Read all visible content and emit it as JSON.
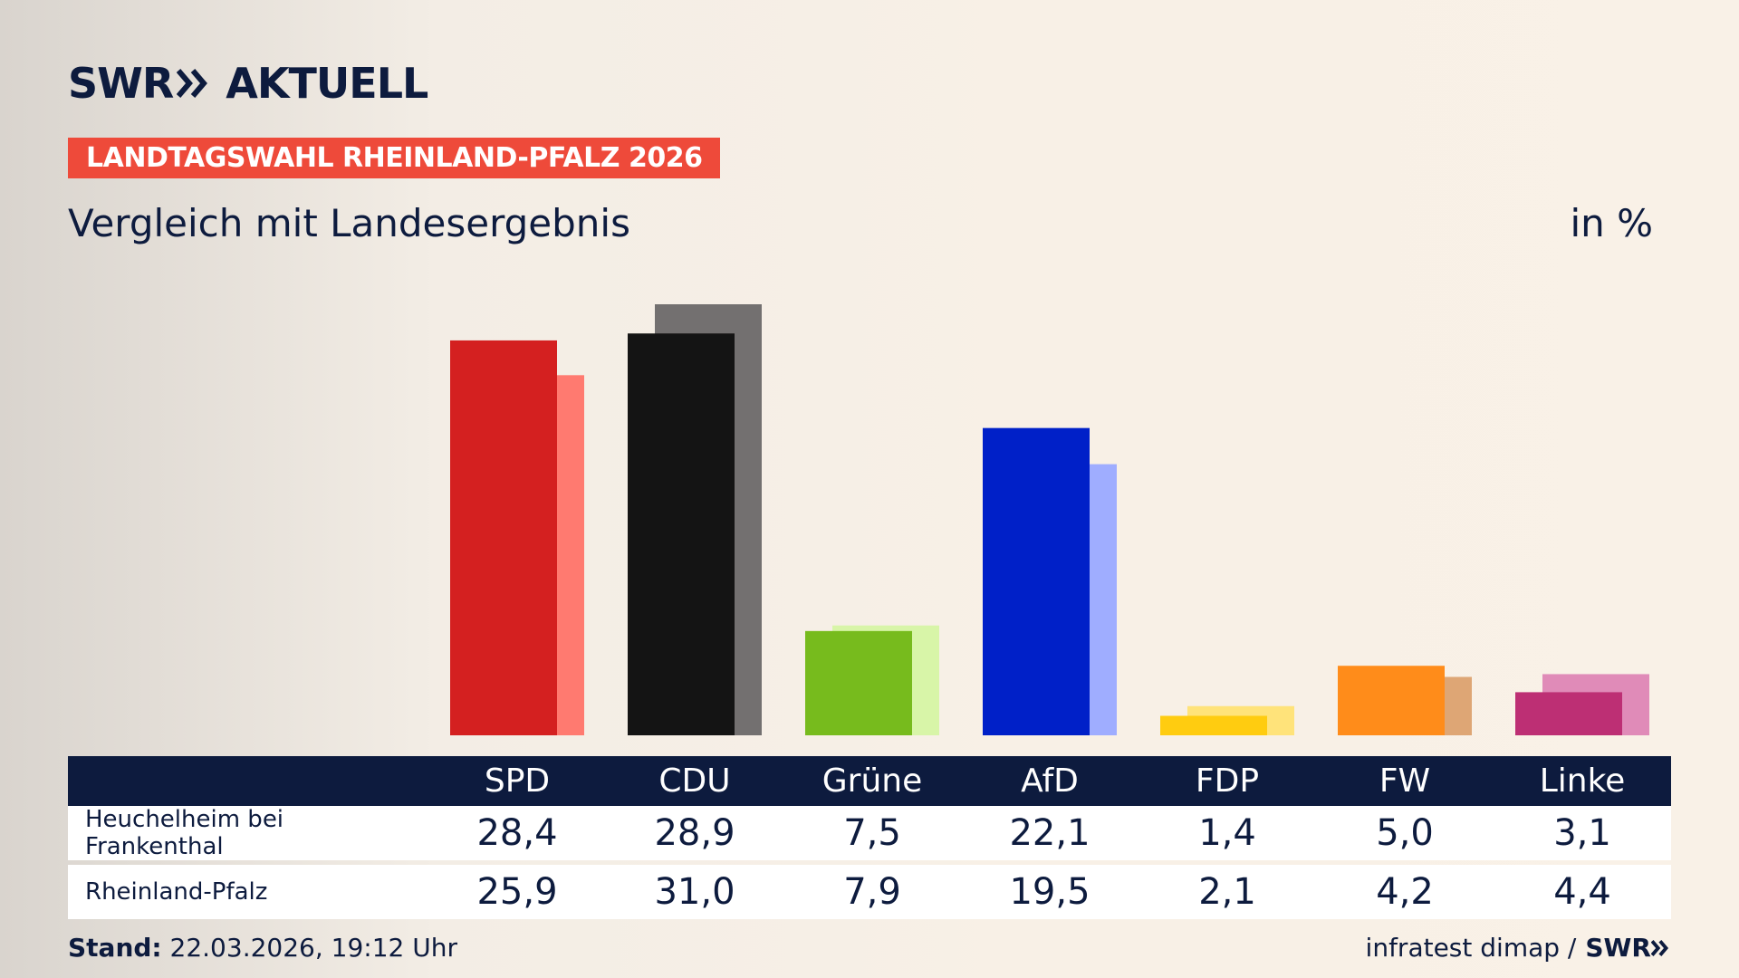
{
  "brand": {
    "name": "SWR",
    "product": "AKTUELL",
    "color": "#0d1b3e"
  },
  "tag": {
    "label": "LANDTAGSWAHL RHEINLAND-PFALZ 2026",
    "color": "#ee4a3a"
  },
  "subtitle": "Vergleich mit Landesergebnis",
  "unit": "in %",
  "chart_data": {
    "type": "bar",
    "categories": [
      "SPD",
      "CDU",
      "Grüne",
      "AfD",
      "FDP",
      "FW",
      "Linke"
    ],
    "series": [
      {
        "name": "Heuchelheim bei Frankenthal",
        "values": [
          28.4,
          28.9,
          7.5,
          22.1,
          1.4,
          5.0,
          3.1
        ],
        "colors": [
          "#d42020",
          "#141414",
          "#77bb1d",
          "#0020c8",
          "#ffcc10",
          "#ff8c1a",
          "#bd2f74"
        ]
      },
      {
        "name": "Rheinland-Pfalz",
        "values": [
          25.9,
          31.0,
          7.9,
          19.5,
          2.1,
          4.2,
          4.4
        ],
        "colors": [
          "#ff7a70",
          "#737070",
          "#d8f5a8",
          "#9fadff",
          "#ffe37a",
          "#dea675",
          "#e08bb8"
        ]
      }
    ],
    "ylim": [
      0,
      31
    ]
  },
  "table": {
    "headers": [
      "SPD",
      "CDU",
      "Grüne",
      "AfD",
      "FDP",
      "FW",
      "Linke"
    ],
    "rows": [
      {
        "label": "Heuchelheim bei Frankenthal",
        "values": [
          "28,4",
          "28,9",
          "7,5",
          "22,1",
          "1,4",
          "5,0",
          "3,1"
        ]
      },
      {
        "label": "Rheinland-Pfalz",
        "values": [
          "25,9",
          "31,0",
          "7,9",
          "19,5",
          "2,1",
          "4,2",
          "4,4"
        ]
      }
    ]
  },
  "footer": {
    "stand_label": "Stand:",
    "stand_value": "22.03.2026, 19:12 Uhr",
    "source": "infratest dimap /",
    "source_brand": "SWR"
  }
}
